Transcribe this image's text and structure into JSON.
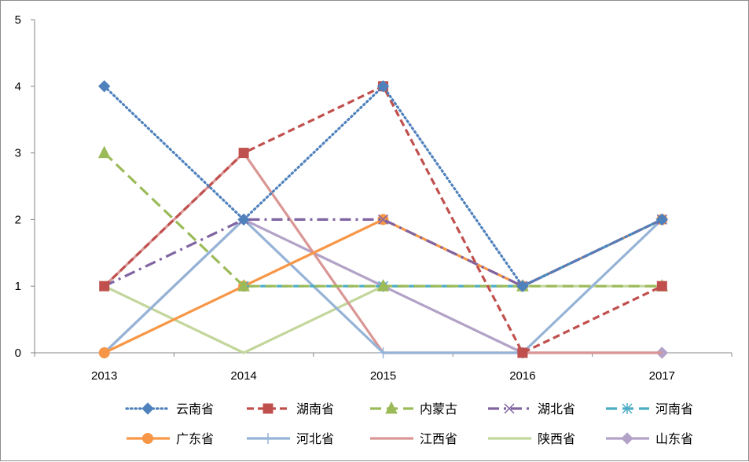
{
  "chart_data": {
    "type": "line",
    "title": "",
    "xlabel": "",
    "ylabel": "",
    "categories": [
      "2013",
      "2014",
      "2015",
      "2016",
      "2017"
    ],
    "y_ticks": [
      "0",
      "1",
      "2",
      "3",
      "4",
      "5"
    ],
    "ylim": [
      0,
      5
    ],
    "grid": false,
    "legend_position": "bottom",
    "series": [
      {
        "name": "云南省",
        "values": [
          4,
          2,
          4,
          1,
          2
        ],
        "color": "#4F81BD",
        "dash": "dot",
        "marker": "diamond"
      },
      {
        "name": "湖南省",
        "values": [
          1,
          3,
          4,
          0,
          1
        ],
        "color": "#C0504D",
        "dash": "dash",
        "marker": "square"
      },
      {
        "name": "内蒙古",
        "values": [
          3,
          1,
          1,
          1,
          1
        ],
        "color": "#9BBB59",
        "dash": "longdash",
        "marker": "triangle"
      },
      {
        "name": "湖北省",
        "values": [
          1,
          2,
          2,
          1,
          2
        ],
        "color": "#8064A2",
        "dash": "dashdot",
        "marker": "x"
      },
      {
        "name": "河南省",
        "values": [
          null,
          1,
          1,
          1,
          2
        ],
        "color": "#4BACC6",
        "dash": "longdash",
        "marker": "star"
      },
      {
        "name": "广东省",
        "values": [
          0,
          1,
          2,
          1,
          2
        ],
        "color": "#F79646",
        "dash": "solid",
        "marker": "circle"
      },
      {
        "name": "河北省",
        "values": [
          0,
          2,
          0,
          0,
          2
        ],
        "color": "#95B3D7",
        "dash": "solid",
        "marker": "plus"
      },
      {
        "name": "江西省",
        "values": [
          1,
          3,
          0,
          0,
          0
        ],
        "color": "#D99694",
        "dash": "solid",
        "marker": "none"
      },
      {
        "name": "陕西省",
        "values": [
          1,
          0,
          1,
          1,
          1
        ],
        "color": "#C3D69B",
        "dash": "solid",
        "marker": "none"
      },
      {
        "name": "山东省",
        "values": [
          0,
          2,
          1,
          0,
          0
        ],
        "color": "#B2A2C7",
        "dash": "solid",
        "marker": "diamond"
      }
    ]
  }
}
